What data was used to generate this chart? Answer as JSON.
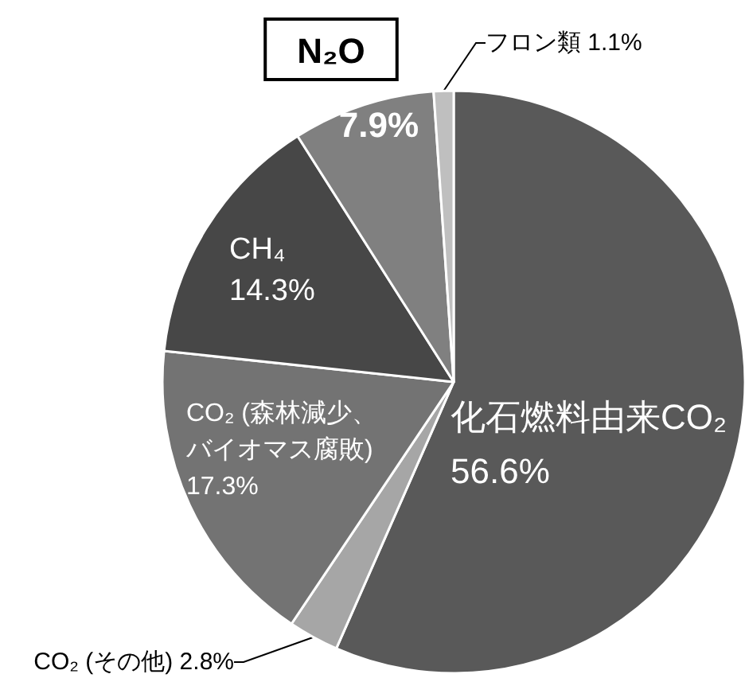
{
  "chart_data": {
    "type": "pie",
    "categories": [
      "化石燃料由来CO₂",
      "CO₂ (その他)",
      "CO₂ (森林減少、バイオマス腐敗)",
      "CH₄",
      "N₂O",
      "フロン類"
    ],
    "values": [
      56.6,
      2.8,
      17.3,
      14.3,
      7.9,
      1.1
    ],
    "colors": [
      "#595959",
      "#a6a6a6",
      "#737373",
      "#474747",
      "#808080",
      "#bfbfbf"
    ],
    "value_labels": [
      "56.6%",
      "2.8%",
      "17.3%",
      "14.3%",
      "7.9%",
      "1.1%"
    ]
  }
}
